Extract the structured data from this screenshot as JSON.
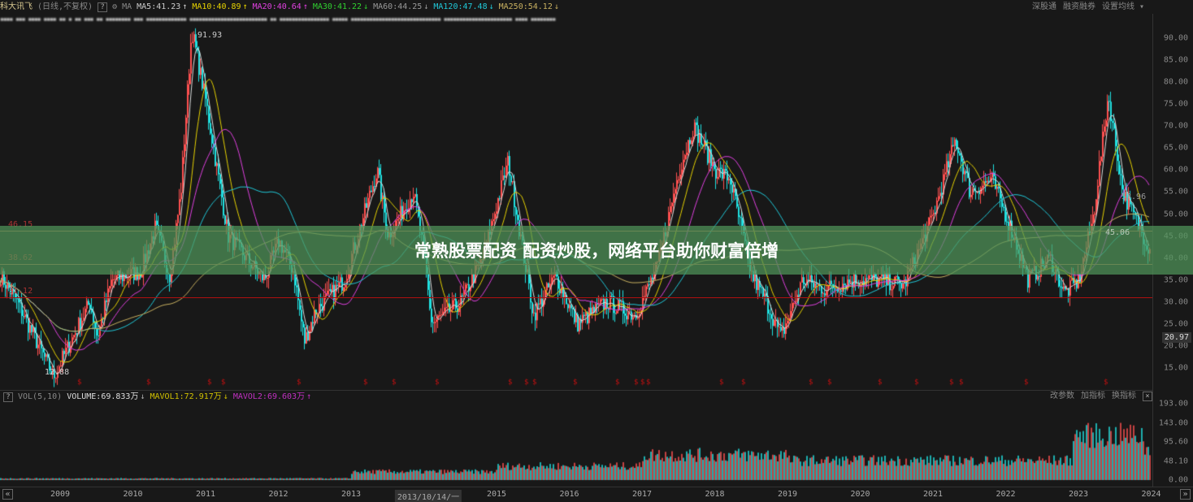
{
  "header": {
    "stock_name": "科大讯飞",
    "mode": "(日线,不复权)",
    "help": "?",
    "ma_label": "MA",
    "ma": [
      {
        "label": "MA5:41.23",
        "arrow": "↑",
        "color": "#cccccc"
      },
      {
        "label": "MA10:40.89",
        "arrow": "↑",
        "color": "#e6d200"
      },
      {
        "label": "MA20:40.64",
        "arrow": "↑",
        "color": "#e040e0"
      },
      {
        "label": "MA30:41.22",
        "arrow": "↓",
        "color": "#30d030"
      },
      {
        "label": "MA60:44.25",
        "arrow": "↓",
        "color": "#999999"
      },
      {
        "label": "MA120:47.48",
        "arrow": "↓",
        "color": "#20c8d8"
      },
      {
        "label": "MA250:54.12",
        "arrow": "↓",
        "color": "#c8b060"
      }
    ],
    "links": [
      "深股通",
      "融资融券",
      "设置均线 ▾"
    ]
  },
  "info_row": "▪▪▪▪ ▪▪▪ ▪▪▪▪   ▪▪▪▪ ▪▪   ▪ ▪▪ ▪▪▪  ▪▪ ▪▪▪▪▪▪▪▪ ▪▪▪ ▪▪▪▪▪▪▪▪▪▪▪▪▪ ▪▪▪▪▪▪▪▪▪▪▪▪▪▪▪▪▪▪▪▪▪▪▪▪▪ ▪▪ ▪▪▪▪▪▪▪▪▪▪▪▪▪▪▪▪ ▪▪▪▪▪ ▪▪▪▪▪▪▪▪▪▪▪▪▪▪▪▪▪▪▪▪▪▪▪▪▪▪▪▪▪ ▪▪▪▪▪▪▪▪▪▪▪▪▪▪▪▪▪▪▪▪▪▪ ▪▪▪▪ ▪▪▪▪▪▪▪▪",
  "price_axis": [
    "90.00",
    "85.00",
    "80.00",
    "75.00",
    "70.00",
    "65.00",
    "60.00",
    "55.00",
    "50.00",
    "45.00",
    "40.00",
    "35.00",
    "30.00",
    "25.00",
    "20.00",
    "15.00"
  ],
  "current_price": "20.97",
  "levels": [
    {
      "label": "46.15",
      "value": 46.15
    },
    {
      "label": "38.62",
      "value": 38.62
    },
    {
      "label": "31.12",
      "value": 31.12
    }
  ],
  "annotations": {
    "high": "91.93",
    "low": "12.88",
    "right1": "53.96",
    "right2": "45.06"
  },
  "overlay_text": "常熟股票配资 配资炒股，网络平台助你财富倍增",
  "price_path": [
    [
      2008.17,
      36
    ],
    [
      2008.4,
      30
    ],
    [
      2008.9,
      13
    ],
    [
      2009.4,
      30
    ],
    [
      2009.5,
      22
    ],
    [
      2009.7,
      35
    ],
    [
      2010.1,
      37
    ],
    [
      2010.3,
      47
    ],
    [
      2010.5,
      36
    ],
    [
      2010.65,
      55
    ],
    [
      2010.8,
      92
    ],
    [
      2011.0,
      75
    ],
    [
      2011.3,
      45
    ],
    [
      2011.8,
      35
    ],
    [
      2012.0,
      44
    ],
    [
      2012.2,
      37
    ],
    [
      2012.35,
      21
    ],
    [
      2012.5,
      28
    ],
    [
      2012.9,
      35
    ],
    [
      2013.35,
      60
    ],
    [
      2013.5,
      45
    ],
    [
      2013.85,
      55
    ],
    [
      2014.0,
      40
    ],
    [
      2014.1,
      25
    ],
    [
      2014.5,
      30
    ],
    [
      2014.8,
      40
    ],
    [
      2015.15,
      62
    ],
    [
      2015.5,
      27
    ],
    [
      2015.8,
      36
    ],
    [
      2016.1,
      25
    ],
    [
      2016.5,
      30
    ],
    [
      2016.9,
      27
    ],
    [
      2017.2,
      38
    ],
    [
      2017.5,
      60
    ],
    [
      2017.7,
      70
    ],
    [
      2018.0,
      60
    ],
    [
      2018.2,
      58
    ],
    [
      2018.5,
      36
    ],
    [
      2018.7,
      30
    ],
    [
      2018.9,
      22
    ],
    [
      2019.2,
      35
    ],
    [
      2019.5,
      33
    ],
    [
      2019.9,
      35
    ],
    [
      2020.2,
      35
    ],
    [
      2020.6,
      34
    ],
    [
      2021.0,
      50
    ],
    [
      2021.3,
      67
    ],
    [
      2021.5,
      55
    ],
    [
      2021.8,
      58
    ],
    [
      2022.1,
      45
    ],
    [
      2022.3,
      35
    ],
    [
      2022.6,
      40
    ],
    [
      2022.8,
      32
    ],
    [
      2023.0,
      35
    ],
    [
      2023.2,
      50
    ],
    [
      2023.4,
      77
    ],
    [
      2023.6,
      55
    ],
    [
      2023.8,
      48
    ],
    [
      2024.0,
      41
    ]
  ],
  "volume": {
    "help": "?",
    "label": "VOL(5,10)",
    "volume": "VOLUME:69.833万",
    "vol_arrow": "↓",
    "mavol1": "MAVOL1:72.917万",
    "m1_arrow": "↓",
    "mavol2": "MAVOL2:69.603万",
    "m2_arrow": "↑",
    "links": [
      "改参数",
      "加指标",
      "换指标"
    ],
    "close": "×",
    "axis": [
      "193.00",
      "143.00",
      "95.60",
      "48.10",
      "0.00"
    ]
  },
  "x_axis": {
    "labels": [
      "2009",
      "2010",
      "2011",
      "2012",
      "2013",
      "2013/10/14/一",
      "2015",
      "2016",
      "2017",
      "2018",
      "2019",
      "2020",
      "2021",
      "2022",
      "2023",
      "2024"
    ],
    "prev": "«",
    "next": "»"
  },
  "colors": {
    "up": "#ff5050",
    "down": "#20e0e0",
    "level": "#b02020",
    "band": "#50965a"
  }
}
